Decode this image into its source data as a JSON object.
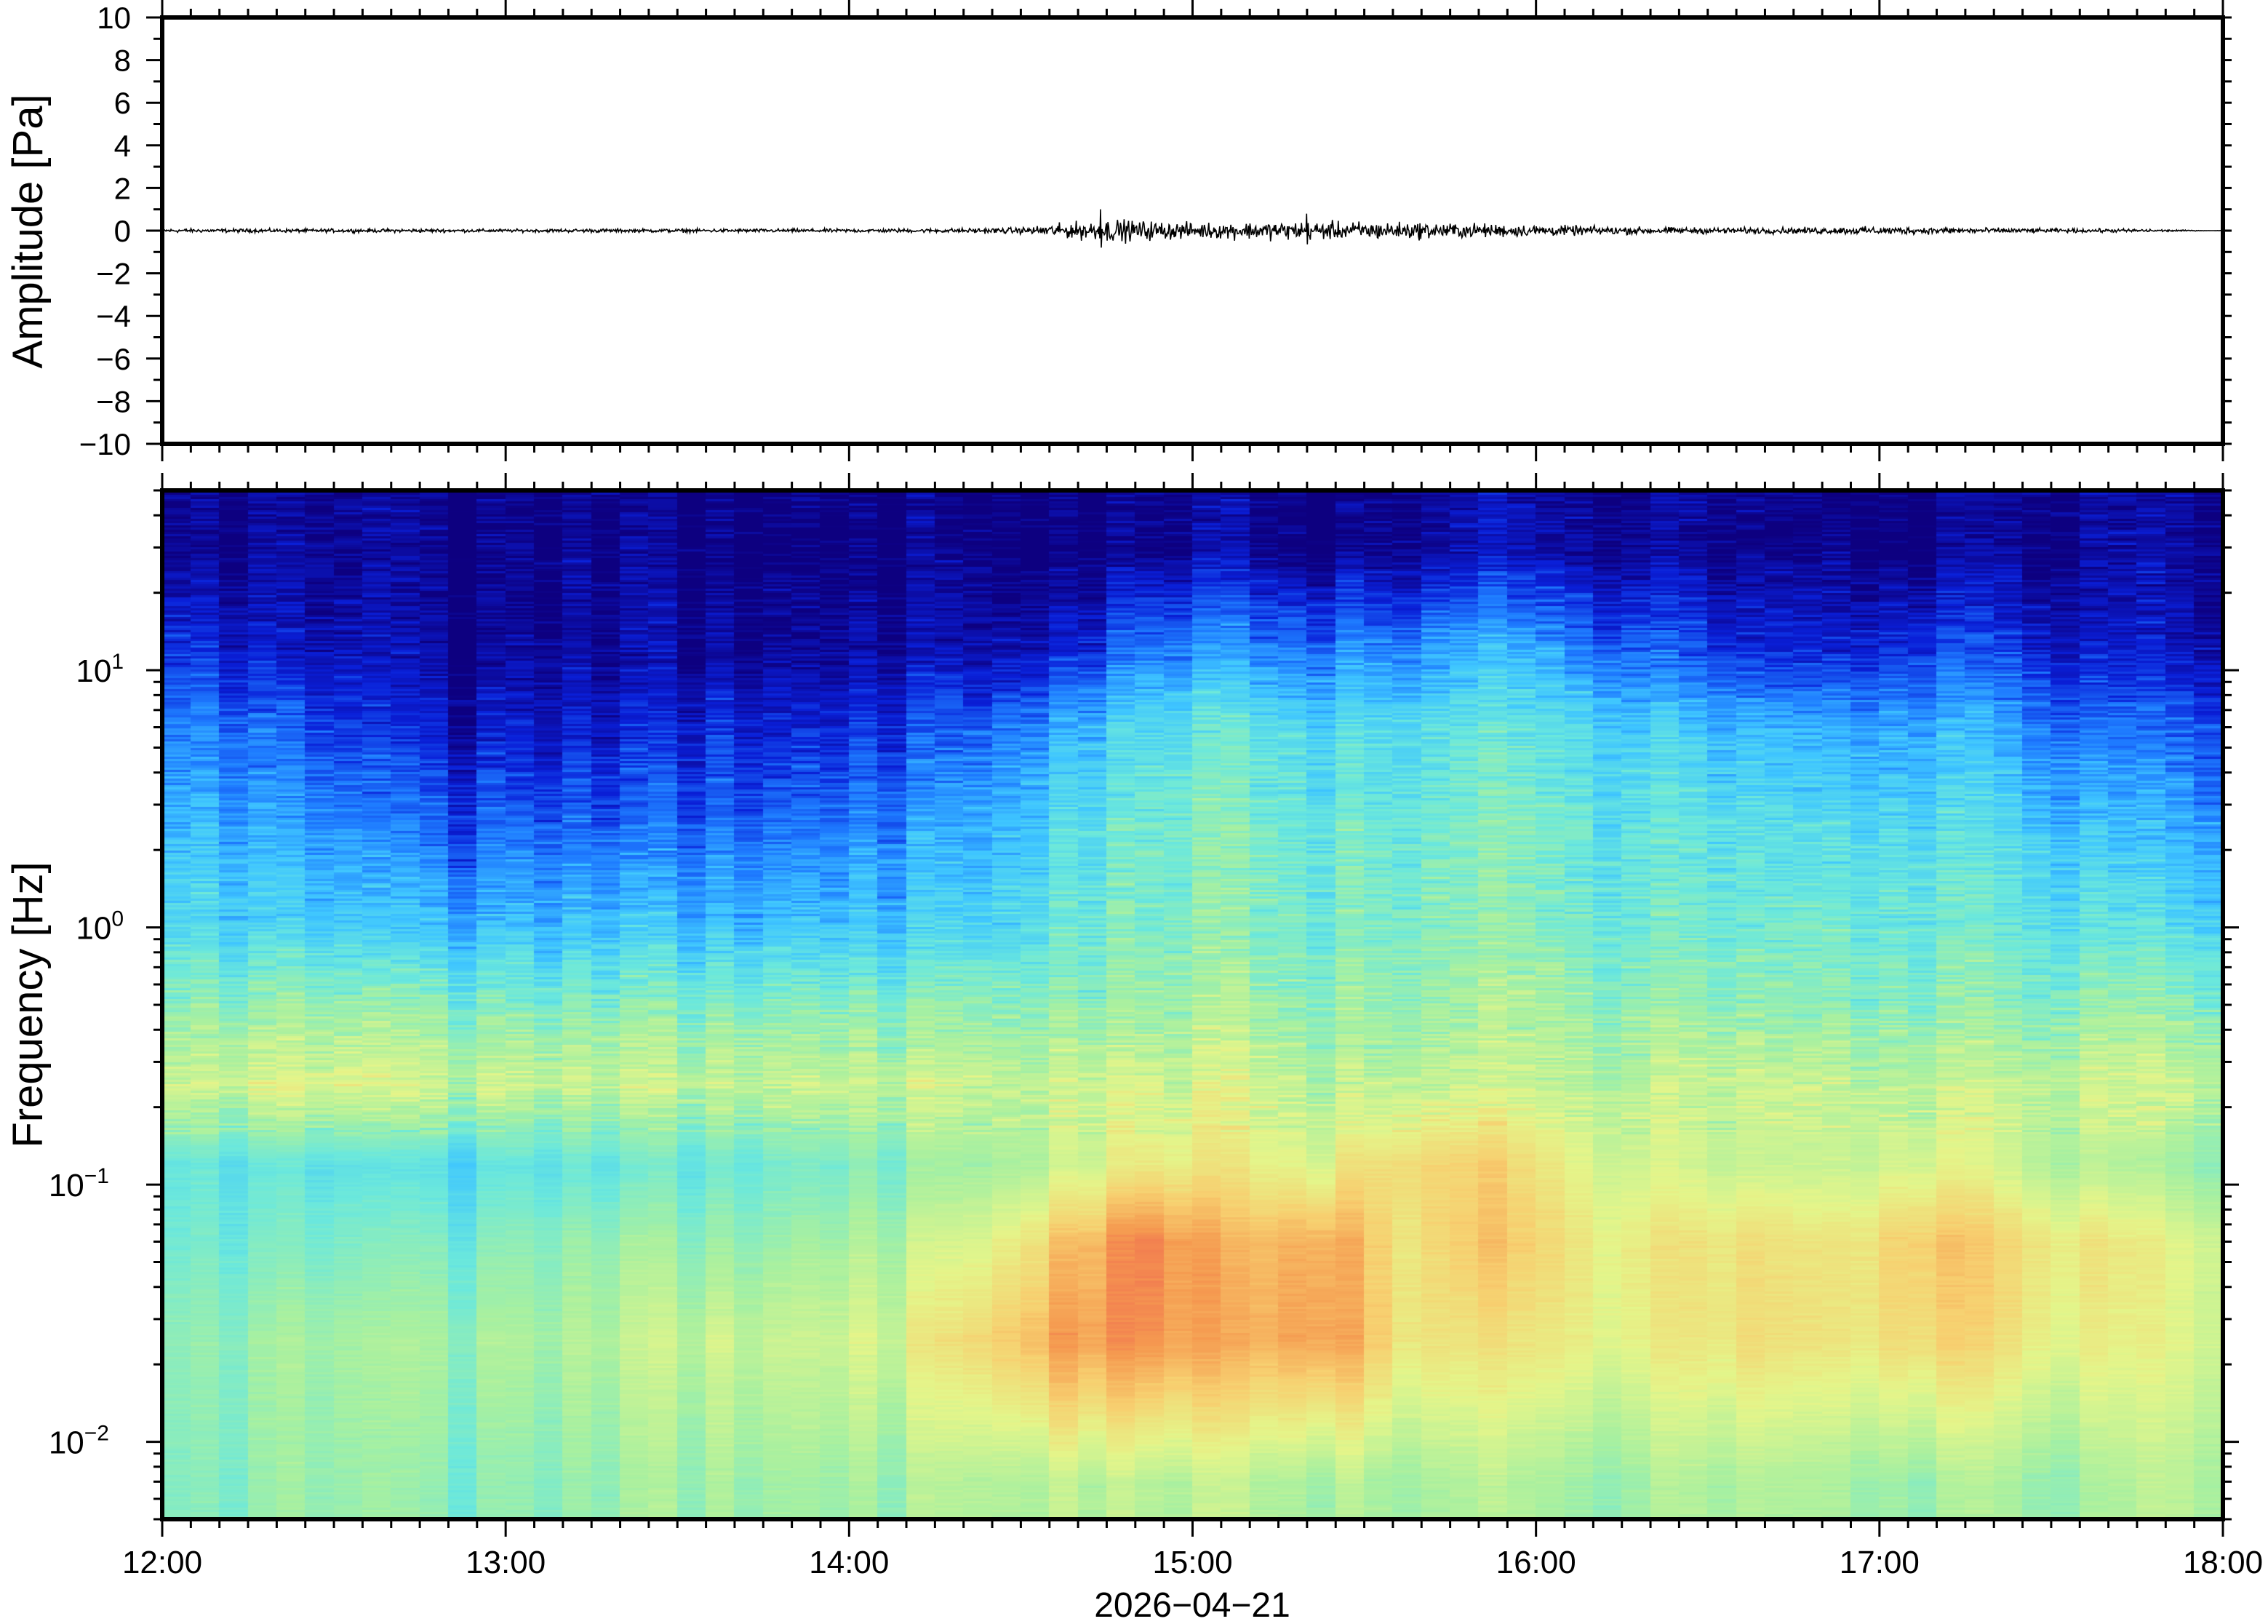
{
  "chart_data": [
    {
      "type": "line",
      "ylabel": "Amplitude [Pa]",
      "ylim": [
        -10,
        10
      ],
      "yticks": [
        "10",
        "8",
        "6",
        "4",
        "2",
        "0",
        "−2",
        "−4",
        "−6",
        "−8",
        "−10"
      ],
      "xlim": [
        "12:00",
        "18:00"
      ],
      "grid": false,
      "envelope_times": [
        "12:00",
        "12:15",
        "12:30",
        "12:45",
        "13:00",
        "13:15",
        "13:30",
        "13:45",
        "14:00",
        "14:15",
        "14:30",
        "14:45",
        "15:00",
        "15:15",
        "15:30",
        "15:45",
        "16:00",
        "16:15",
        "16:30",
        "16:45",
        "17:00",
        "17:15",
        "17:30",
        "17:45"
      ],
      "envelope_amplitude_pa": [
        0.08,
        0.07,
        0.07,
        0.07,
        0.06,
        0.07,
        0.07,
        0.07,
        0.07,
        0.08,
        0.12,
        0.45,
        0.3,
        0.35,
        0.35,
        0.3,
        0.22,
        0.15,
        0.12,
        0.12,
        0.15,
        0.12,
        0.08,
        0.07
      ],
      "peaks": [
        {
          "time": "14:44",
          "amplitude_pa": 1.0
        },
        {
          "time": "15:20",
          "amplitude_pa": 0.8
        }
      ]
    },
    {
      "type": "heatmap",
      "ylabel": "Frequency [Hz]",
      "yscale": "log",
      "ylim": [
        0.005,
        50
      ],
      "yticks": [
        {
          "base": "10",
          "exp": "1"
        },
        {
          "base": "10",
          "exp": "0"
        },
        {
          "base": "10",
          "exp": "−1"
        },
        {
          "base": "10",
          "exp": "−2"
        }
      ],
      "xlim": [
        "12:00",
        "18:00"
      ],
      "xticks": [
        "12:00",
        "13:00",
        "14:00",
        "15:00",
        "16:00",
        "17:00",
        "18:00"
      ],
      "xlabel": "2026−04−21",
      "colormap": [
        "#0d0080",
        "#0a1fd8",
        "#1e7bff",
        "#3fc6ff",
        "#6be8dc",
        "#a8f0a0",
        "#e4f58a",
        "#f7d070",
        "#f59a50",
        "#ee5a50"
      ],
      "times": [
        "12:00",
        "12:15",
        "12:30",
        "12:45",
        "13:00",
        "13:15",
        "13:30",
        "13:45",
        "14:00",
        "14:15",
        "14:30",
        "14:45",
        "15:00",
        "15:15",
        "15:30",
        "15:45",
        "16:00",
        "16:15",
        "16:30",
        "16:45",
        "17:00",
        "17:15",
        "17:30",
        "17:45"
      ],
      "frequency_bands_hz": [
        0.007,
        0.025,
        0.06,
        0.12,
        0.25,
        0.5,
        1,
        2.5,
        6,
        12,
        30
      ],
      "relative_power": [
        [
          0.48,
          0.5,
          0.5,
          0.5,
          0.5,
          0.52,
          0.55,
          0.55,
          0.55,
          0.58,
          0.6,
          0.6,
          0.58,
          0.6,
          0.58,
          0.56,
          0.55,
          0.55,
          0.56,
          0.55,
          0.56,
          0.55,
          0.52,
          0.55
        ],
        [
          0.5,
          0.52,
          0.52,
          0.55,
          0.55,
          0.58,
          0.62,
          0.62,
          0.65,
          0.75,
          0.88,
          0.92,
          0.82,
          0.92,
          0.75,
          0.7,
          0.7,
          0.68,
          0.72,
          0.7,
          0.78,
          0.72,
          0.65,
          0.62
        ],
        [
          0.45,
          0.45,
          0.45,
          0.48,
          0.5,
          0.52,
          0.52,
          0.55,
          0.58,
          0.65,
          0.8,
          0.95,
          0.8,
          0.9,
          0.75,
          0.78,
          0.72,
          0.7,
          0.72,
          0.7,
          0.82,
          0.75,
          0.68,
          0.62
        ],
        [
          0.42,
          0.4,
          0.38,
          0.4,
          0.42,
          0.42,
          0.45,
          0.48,
          0.5,
          0.55,
          0.62,
          0.72,
          0.68,
          0.7,
          0.78,
          0.75,
          0.68,
          0.62,
          0.6,
          0.6,
          0.68,
          0.62,
          0.55,
          0.5
        ],
        [
          0.62,
          0.63,
          0.62,
          0.62,
          0.6,
          0.6,
          0.6,
          0.62,
          0.62,
          0.62,
          0.63,
          0.65,
          0.63,
          0.62,
          0.62,
          0.6,
          0.6,
          0.6,
          0.6,
          0.6,
          0.62,
          0.6,
          0.6,
          0.58
        ],
        [
          0.5,
          0.5,
          0.5,
          0.5,
          0.48,
          0.48,
          0.5,
          0.5,
          0.5,
          0.52,
          0.52,
          0.55,
          0.55,
          0.55,
          0.55,
          0.55,
          0.55,
          0.52,
          0.5,
          0.5,
          0.52,
          0.5,
          0.5,
          0.48
        ],
        [
          0.38,
          0.35,
          0.32,
          0.32,
          0.32,
          0.32,
          0.33,
          0.35,
          0.35,
          0.38,
          0.45,
          0.5,
          0.5,
          0.5,
          0.52,
          0.5,
          0.48,
          0.45,
          0.45,
          0.45,
          0.48,
          0.45,
          0.4,
          0.36
        ],
        [
          0.3,
          0.25,
          0.2,
          0.18,
          0.18,
          0.18,
          0.2,
          0.22,
          0.25,
          0.3,
          0.4,
          0.48,
          0.48,
          0.48,
          0.48,
          0.48,
          0.46,
          0.42,
          0.4,
          0.38,
          0.42,
          0.38,
          0.3,
          0.25
        ],
        [
          0.22,
          0.15,
          0.1,
          0.08,
          0.08,
          0.08,
          0.12,
          0.12,
          0.15,
          0.2,
          0.3,
          0.42,
          0.42,
          0.42,
          0.42,
          0.42,
          0.4,
          0.35,
          0.3,
          0.28,
          0.32,
          0.28,
          0.18,
          0.15
        ],
        [
          0.12,
          0.05,
          0.03,
          0.02,
          0.02,
          0.02,
          0.04,
          0.04,
          0.05,
          0.06,
          0.1,
          0.25,
          0.25,
          0.26,
          0.28,
          0.3,
          0.25,
          0.18,
          0.1,
          0.1,
          0.18,
          0.15,
          0.05,
          0.04
        ],
        [
          0.01,
          0.0,
          0.0,
          0.0,
          0.0,
          0.0,
          0.0,
          0.0,
          0.0,
          0.0,
          0.0,
          0.03,
          0.03,
          0.03,
          0.04,
          0.05,
          0.04,
          0.02,
          0.0,
          0.0,
          0.02,
          0.02,
          0.0,
          0.0
        ]
      ]
    }
  ]
}
